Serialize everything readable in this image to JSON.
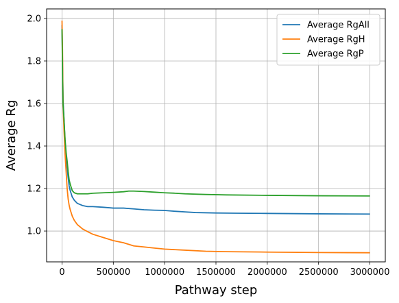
{
  "chart_data": {
    "type": "line",
    "title": "",
    "xlabel": "Pathway step",
    "ylabel": "Average Rg",
    "xlim": [
      -150000,
      3150000
    ],
    "ylim": [
      0.855,
      2.045
    ],
    "xticks": [
      0,
      500000,
      1000000,
      1500000,
      2000000,
      2500000,
      3000000
    ],
    "xtick_labels": [
      "0",
      "500000",
      "1000000",
      "1500000",
      "2000000",
      "2500000",
      "3000000"
    ],
    "yticks": [
      1.0,
      1.2,
      1.4,
      1.6,
      1.8,
      2.0
    ],
    "ytick_labels": [
      "1.0",
      "1.2",
      "1.4",
      "1.6",
      "1.8",
      "2.0"
    ],
    "grid": true,
    "legend_position": "top-right",
    "series": [
      {
        "name": "Average RgAll",
        "color": "#1f77b4",
        "x": [
          0,
          5000,
          10000,
          20000,
          30000,
          40000,
          50000,
          60000,
          70000,
          80000,
          100000,
          120000,
          150000,
          200000,
          250000,
          300000,
          400000,
          500000,
          600000,
          700000,
          800000,
          900000,
          1000000,
          1100000,
          1200000,
          1300000,
          1500000,
          1700000,
          2000000,
          2500000,
          3000000
        ],
        "y": [
          1.97,
          1.8,
          1.62,
          1.52,
          1.42,
          1.35,
          1.3,
          1.25,
          1.21,
          1.19,
          1.16,
          1.145,
          1.13,
          1.12,
          1.115,
          1.115,
          1.112,
          1.108,
          1.108,
          1.104,
          1.1,
          1.098,
          1.097,
          1.093,
          1.09,
          1.087,
          1.085,
          1.084,
          1.083,
          1.081,
          1.08
        ]
      },
      {
        "name": "Average RgH",
        "color": "#ff7f0e",
        "x": [
          0,
          5000,
          10000,
          20000,
          30000,
          40000,
          50000,
          60000,
          70000,
          80000,
          100000,
          120000,
          150000,
          200000,
          250000,
          300000,
          400000,
          500000,
          600000,
          700000,
          800000,
          900000,
          1000000,
          1200000,
          1400000,
          1600000,
          2000000,
          2500000,
          3000000
        ],
        "y": [
          1.99,
          1.85,
          1.6,
          1.47,
          1.36,
          1.28,
          1.2,
          1.15,
          1.12,
          1.1,
          1.07,
          1.05,
          1.03,
          1.01,
          0.997,
          0.985,
          0.97,
          0.955,
          0.945,
          0.93,
          0.925,
          0.92,
          0.915,
          0.91,
          0.905,
          0.903,
          0.901,
          0.899,
          0.898
        ]
      },
      {
        "name": "Average RgP",
        "color": "#2ca02c",
        "x": [
          0,
          5000,
          10000,
          20000,
          30000,
          40000,
          50000,
          60000,
          70000,
          80000,
          100000,
          120000,
          150000,
          200000,
          250000,
          300000,
          400000,
          500000,
          600000,
          650000,
          700000,
          800000,
          900000,
          1000000,
          1100000,
          1200000,
          1400000,
          1600000,
          2000000,
          2500000,
          3000000
        ],
        "y": [
          1.95,
          1.75,
          1.6,
          1.52,
          1.43,
          1.37,
          1.33,
          1.28,
          1.24,
          1.22,
          1.19,
          1.18,
          1.175,
          1.175,
          1.175,
          1.178,
          1.18,
          1.182,
          1.185,
          1.188,
          1.188,
          1.186,
          1.183,
          1.18,
          1.178,
          1.175,
          1.172,
          1.17,
          1.168,
          1.166,
          1.165
        ]
      }
    ]
  }
}
